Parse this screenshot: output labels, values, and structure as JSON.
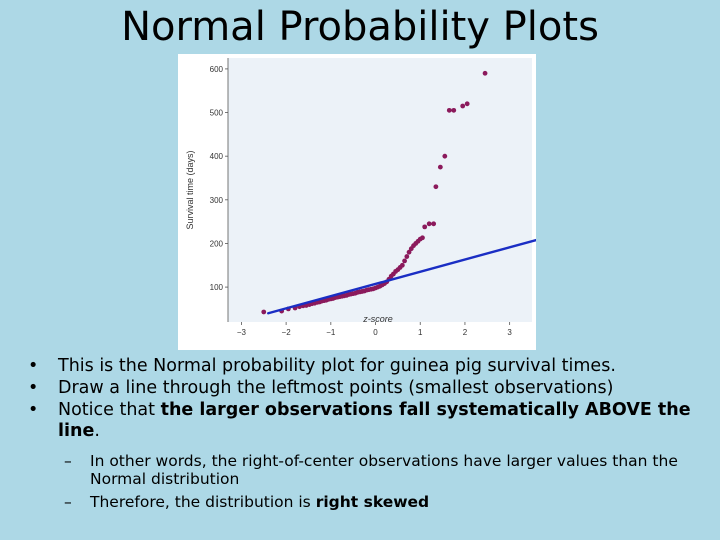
{
  "title": "Normal Probability Plots",
  "chart_data": {
    "type": "scatter",
    "xlabel": "z-score",
    "ylabel": "Survival time (days)",
    "xlim": [
      -3.3,
      3.5
    ],
    "ylim": [
      20,
      625
    ],
    "xticks": [
      "−3",
      "−2",
      "−1",
      "0",
      "1",
      "2",
      "3"
    ],
    "xtick_values": [
      -3,
      -2,
      -1,
      0,
      1,
      2,
      3
    ],
    "yticks": [
      "100",
      "200",
      "300",
      "400",
      "500",
      "600"
    ],
    "ytick_values": [
      100,
      200,
      300,
      400,
      500,
      600
    ],
    "colors": {
      "points": "#8b1a5c",
      "line": "#1a2ec4",
      "plot_bg": "#ecf2f8",
      "frame_bg": "#ffffff"
    },
    "reference_line": {
      "x": [
        -2.4,
        3.6
      ],
      "y": [
        40,
        208
      ]
    },
    "points": {
      "x": [
        -2.5,
        -2.1,
        -1.95,
        -1.8,
        -1.7,
        -1.62,
        -1.55,
        -1.48,
        -1.42,
        -1.36,
        -1.3,
        -1.25,
        -1.2,
        -1.15,
        -1.1,
        -1.05,
        -1.0,
        -0.95,
        -0.9,
        -0.85,
        -0.8,
        -0.75,
        -0.7,
        -0.65,
        -0.6,
        -0.55,
        -0.5,
        -0.45,
        -0.4,
        -0.35,
        -0.3,
        -0.25,
        -0.2,
        -0.15,
        -0.1,
        -0.05,
        0.0,
        0.05,
        0.1,
        0.15,
        0.2,
        0.25,
        0.3,
        0.35,
        0.4,
        0.45,
        0.5,
        0.55,
        0.6,
        0.65,
        0.7,
        0.75,
        0.8,
        0.85,
        0.9,
        0.95,
        1.0,
        1.05,
        1.1,
        1.2,
        1.3,
        1.35,
        1.45,
        1.55,
        1.65,
        1.75,
        1.95,
        2.05,
        2.45
      ],
      "y": [
        43,
        45,
        50,
        52,
        55,
        57,
        58,
        60,
        62,
        63,
        65,
        66,
        68,
        69,
        70,
        72,
        73,
        74,
        76,
        77,
        78,
        79,
        80,
        81,
        83,
        84,
        85,
        86,
        88,
        89,
        90,
        91,
        93,
        94,
        95,
        96,
        98,
        100,
        102,
        105,
        108,
        112,
        118,
        125,
        130,
        136,
        140,
        145,
        150,
        160,
        170,
        180,
        188,
        195,
        200,
        205,
        210,
        213,
        238,
        245,
        245,
        330,
        375,
        400,
        505,
        505,
        515,
        520,
        590
      ]
    }
  },
  "bullets": [
    {
      "text": "This is the Normal probability plot for guinea pig survival times."
    },
    {
      "text": "Draw a line through the leftmost points (smallest observations)"
    },
    {
      "pre": "Notice that ",
      "bold": "the larger observations fall systematically ABOVE the line",
      "post": "."
    }
  ],
  "sub_bullets": [
    {
      "text": "In other words, the right-of-center observations have larger values than the Normal distribution"
    },
    {
      "pre": "Therefore, the distribution is ",
      "bold": "right skewed"
    }
  ]
}
